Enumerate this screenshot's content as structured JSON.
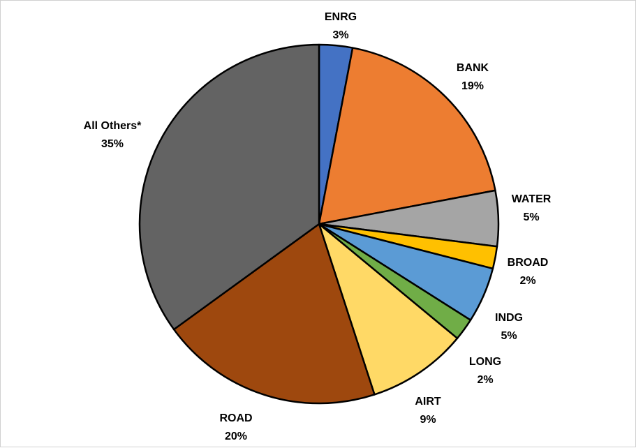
{
  "chart_data": {
    "type": "pie",
    "title": "",
    "start_angle_deg": 0,
    "direction": "clockwise",
    "slices": [
      {
        "name": "ENRG",
        "label": "3%",
        "value": 3,
        "color": "#4472C4"
      },
      {
        "name": "BANK",
        "label": "19%",
        "value": 19,
        "color": "#ED7D31"
      },
      {
        "name": "WATER",
        "label": "5%",
        "value": 5,
        "color": "#A5A5A5"
      },
      {
        "name": "BROAD",
        "label": "2%",
        "value": 2,
        "color": "#FFC000"
      },
      {
        "name": "INDG",
        "label": "5%",
        "value": 5,
        "color": "#5B9BD5"
      },
      {
        "name": "LONG",
        "label": "2%",
        "value": 2,
        "color": "#70AD47"
      },
      {
        "name": "AIRT",
        "label": "9%",
        "value": 9,
        "color": "#FFD966"
      },
      {
        "name": "ROAD",
        "label": "20%",
        "value": 20,
        "color": "#9E480E"
      },
      {
        "name": "All Others*",
        "label": "35%",
        "value": 35,
        "color": "#636363"
      }
    ],
    "slice_border_color": "#000000"
  }
}
